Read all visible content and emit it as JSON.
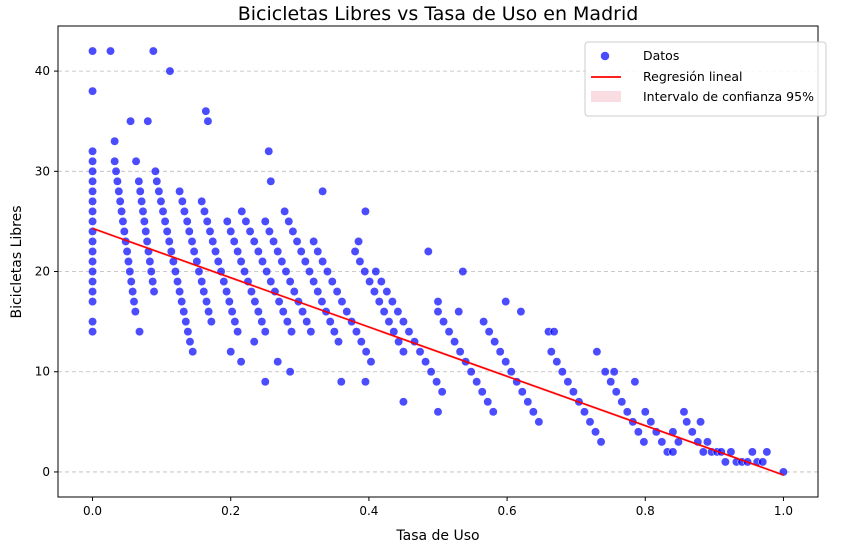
{
  "chart_data": {
    "type": "scatter",
    "title": "Bicicletas Libres vs Tasa de Uso en Madrid",
    "xlabel": "Tasa de Uso",
    "ylabel": "Bicicletas Libres",
    "xlim": [
      -0.05,
      1.05
    ],
    "ylim": [
      -2.5,
      44.5
    ],
    "xticks": [
      "0.0",
      "0.2",
      "0.4",
      "0.6",
      "0.8",
      "1.0"
    ],
    "yticks": [
      "0",
      "10",
      "20",
      "30",
      "40"
    ],
    "grid": "horizontal dashed",
    "legend": {
      "position": "top-right",
      "entries": [
        "Datos",
        "Regresión lineal",
        "Intervalo de confianza 95%"
      ]
    },
    "colors": {
      "points": "#0000ff",
      "regression": "#ff0000",
      "confidence": "#f7c6cf"
    },
    "series": [
      {
        "name": "Datos",
        "points": [
          [
            0,
            42
          ],
          [
            0,
            38
          ],
          [
            0,
            32
          ],
          [
            0,
            31
          ],
          [
            0,
            30
          ],
          [
            0,
            29
          ],
          [
            0,
            28
          ],
          [
            0,
            27
          ],
          [
            0,
            26
          ],
          [
            0,
            25
          ],
          [
            0,
            24
          ],
          [
            0,
            23
          ],
          [
            0,
            22
          ],
          [
            0,
            21
          ],
          [
            0,
            20
          ],
          [
            0,
            19
          ],
          [
            0,
            18
          ],
          [
            0,
            17
          ],
          [
            0,
            15
          ],
          [
            0,
            14
          ],
          [
            0.026,
            42
          ],
          [
            0.032,
            33
          ],
          [
            0.032,
            31
          ],
          [
            0.034,
            30
          ],
          [
            0.036,
            29
          ],
          [
            0.038,
            28
          ],
          [
            0.04,
            27
          ],
          [
            0.042,
            26
          ],
          [
            0.044,
            25
          ],
          [
            0.046,
            24
          ],
          [
            0.048,
            23
          ],
          [
            0.05,
            22
          ],
          [
            0.052,
            21
          ],
          [
            0.054,
            20
          ],
          [
            0.056,
            19
          ],
          [
            0.058,
            18
          ],
          [
            0.06,
            17
          ],
          [
            0.062,
            16
          ],
          [
            0.055,
            35
          ],
          [
            0.063,
            31
          ],
          [
            0.067,
            29
          ],
          [
            0.069,
            28
          ],
          [
            0.071,
            27
          ],
          [
            0.073,
            26
          ],
          [
            0.075,
            25
          ],
          [
            0.077,
            24
          ],
          [
            0.079,
            23
          ],
          [
            0.081,
            22
          ],
          [
            0.083,
            21
          ],
          [
            0.085,
            20
          ],
          [
            0.087,
            19
          ],
          [
            0.089,
            18
          ],
          [
            0.068,
            14
          ],
          [
            0.08,
            35
          ],
          [
            0.088,
            42
          ],
          [
            0.091,
            30
          ],
          [
            0.093,
            29
          ],
          [
            0.096,
            28
          ],
          [
            0.099,
            27
          ],
          [
            0.102,
            26
          ],
          [
            0.105,
            25
          ],
          [
            0.108,
            24
          ],
          [
            0.111,
            23
          ],
          [
            0.114,
            22
          ],
          [
            0.117,
            21
          ],
          [
            0.12,
            20
          ],
          [
            0.123,
            19
          ],
          [
            0.126,
            18
          ],
          [
            0.129,
            17
          ],
          [
            0.132,
            16
          ],
          [
            0.135,
            15
          ],
          [
            0.138,
            14
          ],
          [
            0.141,
            13
          ],
          [
            0.112,
            40
          ],
          [
            0.126,
            28
          ],
          [
            0.13,
            27
          ],
          [
            0.133,
            26
          ],
          [
            0.137,
            25
          ],
          [
            0.14,
            24
          ],
          [
            0.144,
            23
          ],
          [
            0.147,
            22
          ],
          [
            0.151,
            21
          ],
          [
            0.154,
            20
          ],
          [
            0.158,
            19
          ],
          [
            0.161,
            18
          ],
          [
            0.165,
            17
          ],
          [
            0.168,
            16
          ],
          [
            0.172,
            15
          ],
          [
            0.145,
            12
          ],
          [
            0.164,
            36
          ],
          [
            0.167,
            35
          ],
          [
            0.158,
            27
          ],
          [
            0.162,
            26
          ],
          [
            0.166,
            25
          ],
          [
            0.17,
            24
          ],
          [
            0.174,
            23
          ],
          [
            0.178,
            22
          ],
          [
            0.182,
            21
          ],
          [
            0.186,
            20
          ],
          [
            0.19,
            19
          ],
          [
            0.194,
            18
          ],
          [
            0.198,
            17
          ],
          [
            0.202,
            16
          ],
          [
            0.206,
            15
          ],
          [
            0.21,
            14
          ],
          [
            0.195,
            25
          ],
          [
            0.2,
            24
          ],
          [
            0.205,
            23
          ],
          [
            0.21,
            22
          ],
          [
            0.215,
            21
          ],
          [
            0.22,
            20
          ],
          [
            0.225,
            19
          ],
          [
            0.23,
            18
          ],
          [
            0.235,
            17
          ],
          [
            0.24,
            16
          ],
          [
            0.245,
            15
          ],
          [
            0.25,
            14
          ],
          [
            0.2,
            12
          ],
          [
            0.215,
            11
          ],
          [
            0.216,
            26
          ],
          [
            0.222,
            25
          ],
          [
            0.228,
            24
          ],
          [
            0.234,
            23
          ],
          [
            0.24,
            22
          ],
          [
            0.246,
            21
          ],
          [
            0.252,
            20
          ],
          [
            0.258,
            19
          ],
          [
            0.264,
            18
          ],
          [
            0.27,
            17
          ],
          [
            0.276,
            16
          ],
          [
            0.282,
            15
          ],
          [
            0.288,
            14
          ],
          [
            0.234,
            13
          ],
          [
            0.25,
            9
          ],
          [
            0.255,
            32
          ],
          [
            0.258,
            29
          ],
          [
            0.25,
            25
          ],
          [
            0.256,
            24
          ],
          [
            0.262,
            23
          ],
          [
            0.268,
            22
          ],
          [
            0.274,
            21
          ],
          [
            0.28,
            20
          ],
          [
            0.286,
            19
          ],
          [
            0.292,
            18
          ],
          [
            0.298,
            17
          ],
          [
            0.304,
            16
          ],
          [
            0.31,
            15
          ],
          [
            0.316,
            14
          ],
          [
            0.268,
            11
          ],
          [
            0.278,
            26
          ],
          [
            0.284,
            25
          ],
          [
            0.29,
            24
          ],
          [
            0.296,
            23
          ],
          [
            0.302,
            22
          ],
          [
            0.308,
            21
          ],
          [
            0.314,
            20
          ],
          [
            0.32,
            19
          ],
          [
            0.326,
            18
          ],
          [
            0.332,
            17
          ],
          [
            0.338,
            16
          ],
          [
            0.344,
            15
          ],
          [
            0.35,
            14
          ],
          [
            0.356,
            13
          ],
          [
            0.286,
            10
          ],
          [
            0.333,
            28
          ],
          [
            0.32,
            23
          ],
          [
            0.326,
            22
          ],
          [
            0.333,
            21
          ],
          [
            0.34,
            20
          ],
          [
            0.347,
            19
          ],
          [
            0.354,
            18
          ],
          [
            0.361,
            17
          ],
          [
            0.368,
            16
          ],
          [
            0.375,
            15
          ],
          [
            0.382,
            14
          ],
          [
            0.389,
            13
          ],
          [
            0.396,
            12
          ],
          [
            0.403,
            11
          ],
          [
            0.36,
            9
          ],
          [
            0.385,
            23
          ],
          [
            0.38,
            22
          ],
          [
            0.387,
            21
          ],
          [
            0.394,
            20
          ],
          [
            0.401,
            19
          ],
          [
            0.408,
            18
          ],
          [
            0.415,
            17
          ],
          [
            0.422,
            16
          ],
          [
            0.429,
            15
          ],
          [
            0.436,
            14
          ],
          [
            0.443,
            13
          ],
          [
            0.45,
            12
          ],
          [
            0.395,
            26
          ],
          [
            0.395,
            9
          ],
          [
            0.41,
            20
          ],
          [
            0.418,
            19
          ],
          [
            0.426,
            18
          ],
          [
            0.434,
            17
          ],
          [
            0.442,
            16
          ],
          [
            0.45,
            15
          ],
          [
            0.458,
            14
          ],
          [
            0.466,
            13
          ],
          [
            0.474,
            12
          ],
          [
            0.482,
            11
          ],
          [
            0.49,
            10
          ],
          [
            0.498,
            9
          ],
          [
            0.506,
            8
          ],
          [
            0.45,
            7
          ],
          [
            0.486,
            22
          ],
          [
            0.5,
            17
          ],
          [
            0.5,
            16
          ],
          [
            0.508,
            15
          ],
          [
            0.516,
            14
          ],
          [
            0.524,
            13
          ],
          [
            0.532,
            12
          ],
          [
            0.54,
            11
          ],
          [
            0.548,
            10
          ],
          [
            0.556,
            9
          ],
          [
            0.564,
            8
          ],
          [
            0.572,
            7
          ],
          [
            0.58,
            6
          ],
          [
            0.5,
            6
          ],
          [
            0.536,
            20
          ],
          [
            0.53,
            16
          ],
          [
            0.566,
            15
          ],
          [
            0.574,
            14
          ],
          [
            0.582,
            13
          ],
          [
            0.59,
            12
          ],
          [
            0.598,
            11
          ],
          [
            0.606,
            10
          ],
          [
            0.614,
            9
          ],
          [
            0.622,
            8
          ],
          [
            0.63,
            7
          ],
          [
            0.638,
            6
          ],
          [
            0.646,
            5
          ],
          [
            0.598,
            17
          ],
          [
            0.62,
            16
          ],
          [
            0.66,
            14
          ],
          [
            0.668,
            14
          ],
          [
            0.664,
            12
          ],
          [
            0.672,
            11
          ],
          [
            0.68,
            10
          ],
          [
            0.688,
            9
          ],
          [
            0.696,
            8
          ],
          [
            0.704,
            7
          ],
          [
            0.712,
            6
          ],
          [
            0.72,
            5
          ],
          [
            0.728,
            4
          ],
          [
            0.736,
            3
          ],
          [
            0.73,
            12
          ],
          [
            0.742,
            10
          ],
          [
            0.75,
            9
          ],
          [
            0.758,
            8
          ],
          [
            0.766,
            7
          ],
          [
            0.774,
            6
          ],
          [
            0.782,
            5
          ],
          [
            0.79,
            4
          ],
          [
            0.798,
            3
          ],
          [
            0.755,
            10
          ],
          [
            0.785,
            9
          ],
          [
            0.8,
            6
          ],
          [
            0.808,
            5
          ],
          [
            0.816,
            4
          ],
          [
            0.824,
            3
          ],
          [
            0.832,
            2
          ],
          [
            0.84,
            4
          ],
          [
            0.848,
            3
          ],
          [
            0.856,
            6
          ],
          [
            0.86,
            5
          ],
          [
            0.868,
            4
          ],
          [
            0.876,
            3
          ],
          [
            0.884,
            2
          ],
          [
            0.88,
            5
          ],
          [
            0.84,
            2
          ],
          [
            0.89,
            3
          ],
          [
            0.896,
            2
          ],
          [
            0.904,
            2
          ],
          [
            0.91,
            2
          ],
          [
            0.916,
            1
          ],
          [
            0.924,
            2
          ],
          [
            0.932,
            1
          ],
          [
            0.94,
            1
          ],
          [
            0.948,
            1
          ],
          [
            0.955,
            2
          ],
          [
            0.962,
            1
          ],
          [
            0.97,
            1
          ],
          [
            0.976,
            2
          ],
          [
            1.0,
            0
          ]
        ]
      }
    ],
    "regression": {
      "name": "Regresión lineal",
      "x": [
        0,
        1
      ],
      "y": [
        24.3,
        -0.3
      ]
    }
  }
}
